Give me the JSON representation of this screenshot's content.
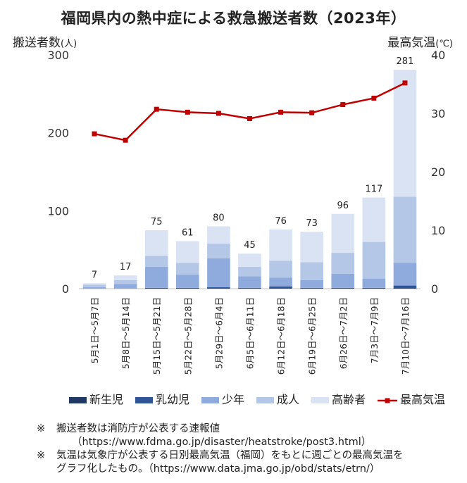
{
  "chart_data": {
    "type": "bar",
    "title": "福岡県内の熱中症による救急搬送者数（2023年）",
    "ylabel": "搬送者数",
    "ylabel_unit": "(人)",
    "y2label": "最高気温",
    "y2label_unit": "(℃)",
    "ylim": [
      0,
      300
    ],
    "y2lim": [
      0,
      40
    ],
    "yticks": [
      "0",
      "100",
      "200",
      "300"
    ],
    "y2ticks": [
      "0",
      "10",
      "20",
      "30",
      "40"
    ],
    "categories": [
      "5月1日～5月7日",
      "5月8日～5月14日",
      "5月15日～5月21日",
      "5月22日～5月28日",
      "5月29日～6月4日",
      "6月5日～6月11日",
      "6月12日～6月18日",
      "6月19日～6月25日",
      "6月26日～7月2日",
      "7月3日～7月9日",
      "7月10日～7月16日"
    ],
    "totals": [
      "7",
      "17",
      "75",
      "61",
      "80",
      "45",
      "76",
      "73",
      "96",
      "117",
      "281"
    ],
    "series": [
      {
        "name": "新生児",
        "color": "#1f3864",
        "values": [
          0,
          0,
          0,
          0,
          0,
          0,
          0,
          0,
          0,
          0,
          0
        ]
      },
      {
        "name": "乳幼児",
        "color": "#2f5597",
        "values": [
          0,
          0,
          1,
          1,
          2,
          1,
          3,
          1,
          1,
          1,
          4
        ]
      },
      {
        "name": "少年",
        "color": "#8faadc",
        "values": [
          2,
          6,
          27,
          17,
          37,
          15,
          11,
          10,
          18,
          12,
          29
        ]
      },
      {
        "name": "成人",
        "color": "#b4c7e7",
        "values": [
          3,
          5,
          14,
          15,
          19,
          12,
          22,
          23,
          27,
          47,
          85
        ]
      },
      {
        "name": "高齢者",
        "color": "#dae3f3",
        "values": [
          2,
          6,
          33,
          28,
          22,
          17,
          40,
          39,
          50,
          57,
          163
        ]
      }
    ],
    "line": {
      "name": "最高気温",
      "color": "#c00000",
      "values": [
        26.5,
        25.4,
        30.7,
        30.2,
        30.0,
        29.1,
        30.2,
        30.1,
        31.5,
        32.6,
        35.2
      ]
    },
    "grid": false,
    "legend_position": "bottom"
  },
  "notes": [
    {
      "mark": "※",
      "text": "搬送者数は消防庁が公表する速報値",
      "url": "（https://www.fdma.go.jp/disaster/heatstroke/post3.html）"
    },
    {
      "mark": "※",
      "text": "気温は気象庁が公表する日別最高気温（福岡）をもとに週ごとの最高気温を",
      "text2": "グラフ化したもの。（https://www.data.jma.go.jp/obd/stats/etrn/）"
    }
  ]
}
